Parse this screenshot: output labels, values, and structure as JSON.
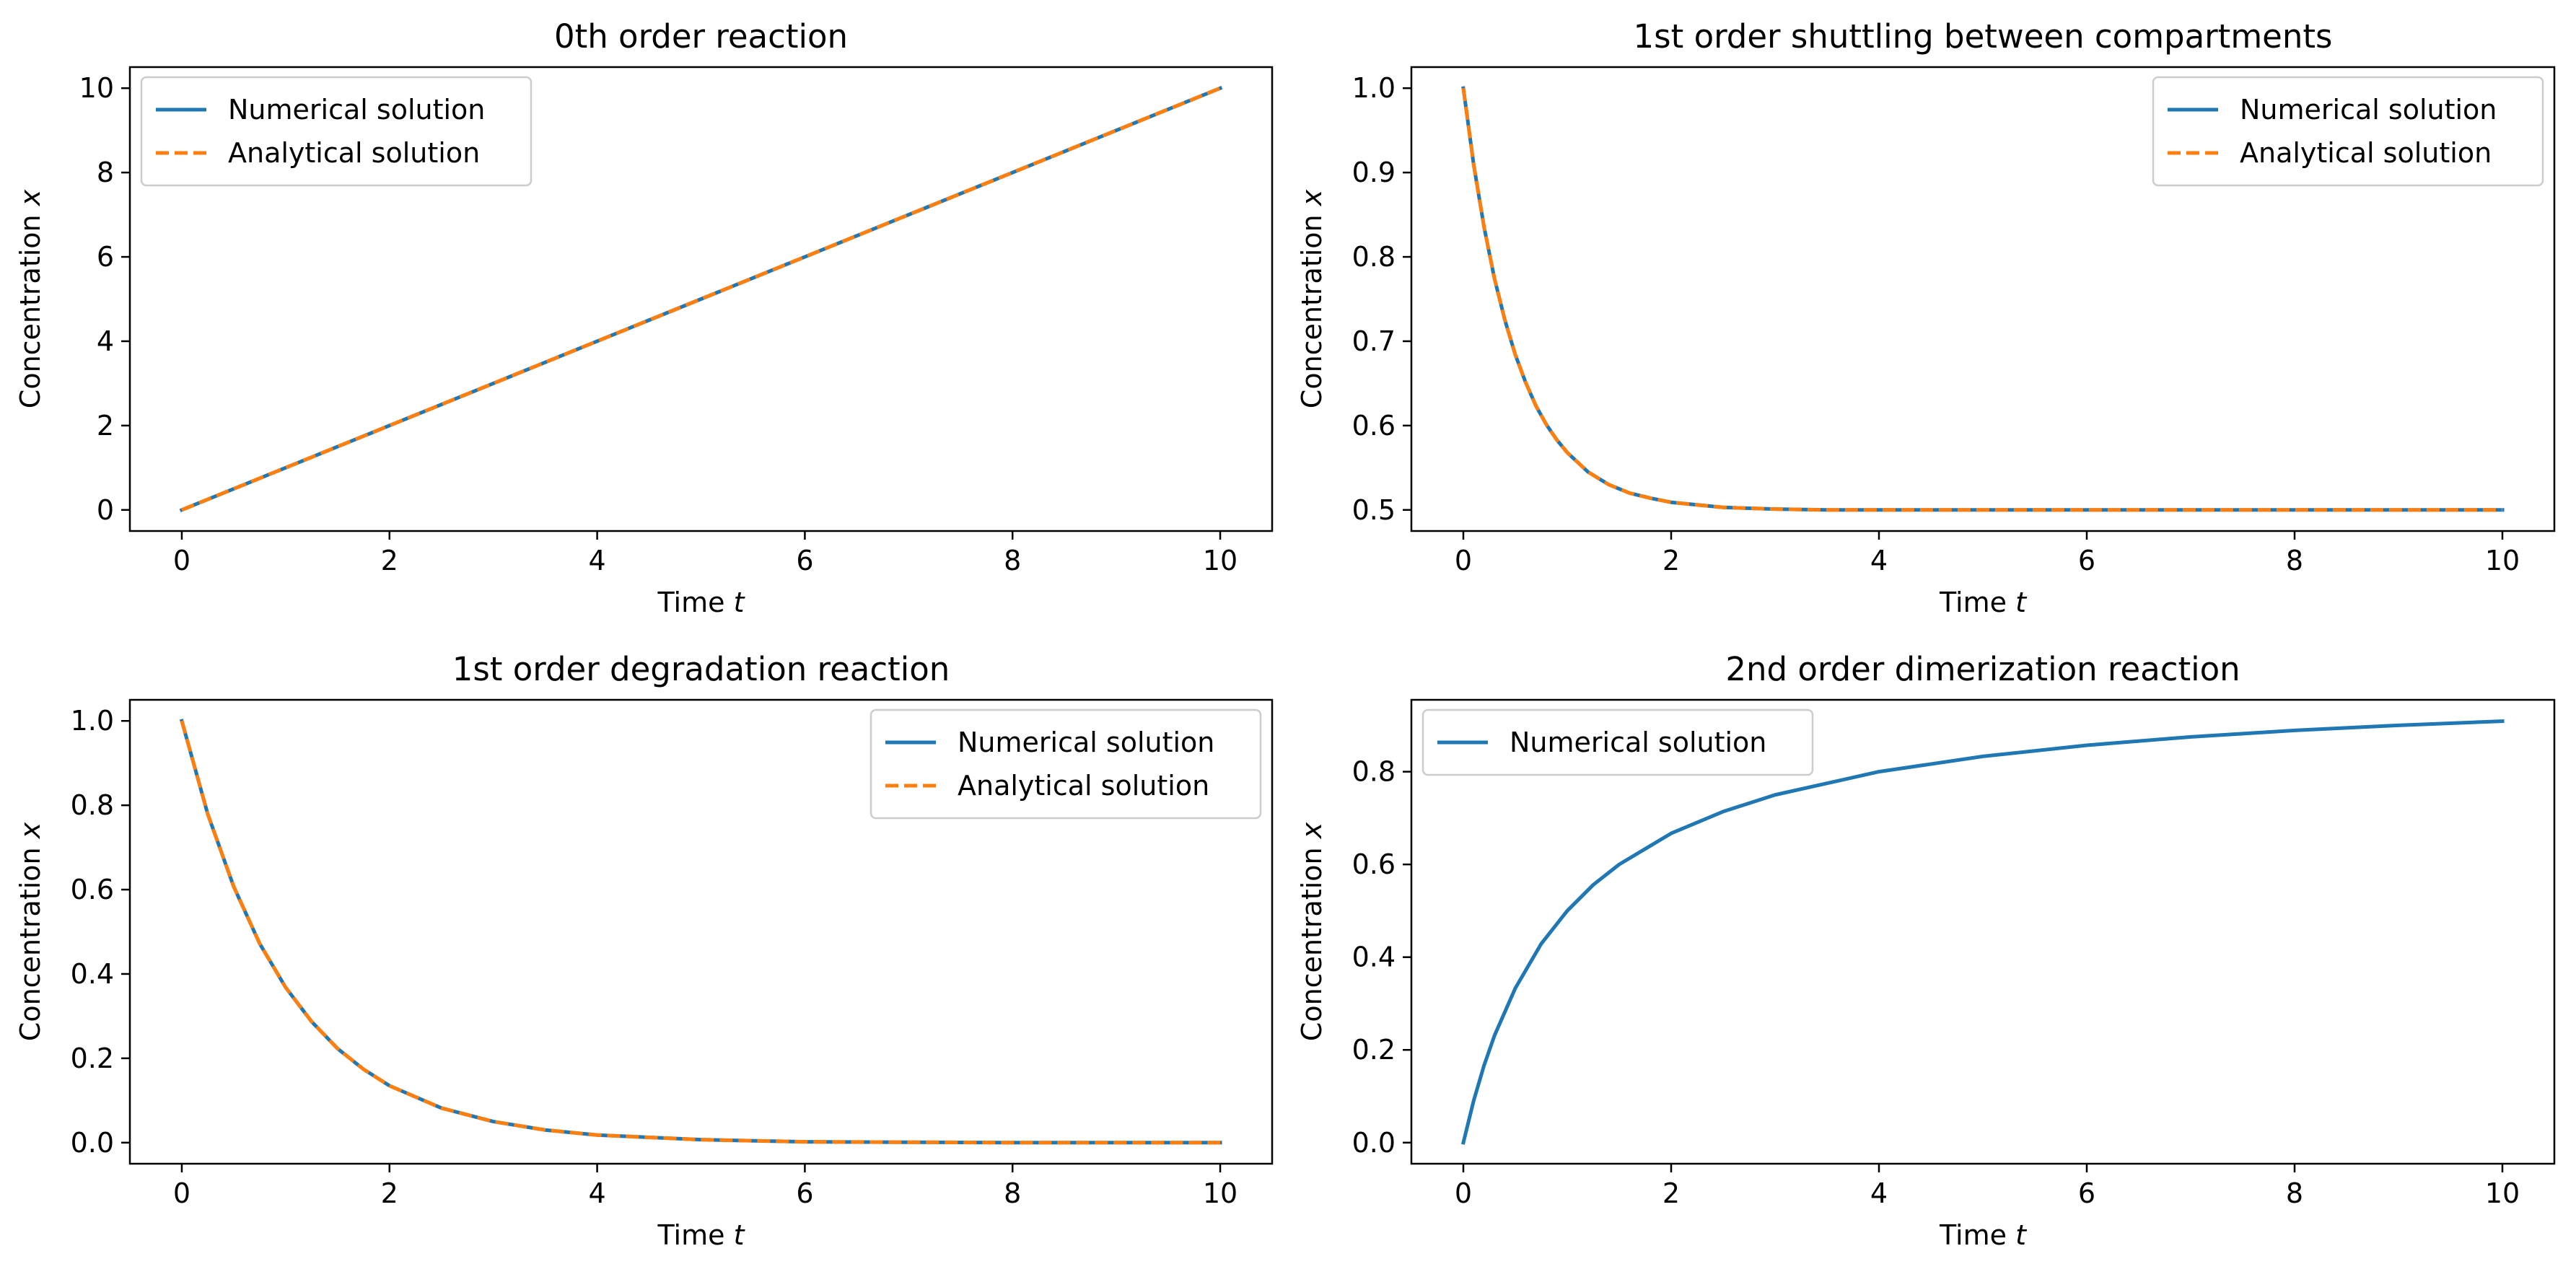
{
  "figure": {
    "colors": {
      "numerical": "#1f77b4",
      "analytical": "#ff7f0e"
    }
  },
  "chart_data": [
    {
      "type": "line",
      "title": "0th order reaction",
      "xlabel": "Time",
      "xlabel_var": "t",
      "ylabel": "Concentration",
      "ylabel_var": "x",
      "xlim": [
        -0.5,
        10.5
      ],
      "ylim": [
        -0.5,
        10.5
      ],
      "xticks": [
        0,
        2,
        4,
        6,
        8,
        10
      ],
      "yticks": [
        0,
        2,
        4,
        6,
        8,
        10
      ],
      "ytick_labels": [
        "0",
        "2",
        "4",
        "6",
        "8",
        "10"
      ],
      "legend": "upper-left",
      "grid": false,
      "x": [
        0,
        1,
        2,
        3,
        4,
        5,
        6,
        7,
        8,
        9,
        10
      ],
      "series": [
        {
          "name": "Numerical solution",
          "style": "solid",
          "values": [
            0,
            1,
            2,
            3,
            4,
            5,
            6,
            7,
            8,
            9,
            10
          ]
        },
        {
          "name": "Analytical solution",
          "style": "dashed",
          "values": [
            0,
            1,
            2,
            3,
            4,
            5,
            6,
            7,
            8,
            9,
            10
          ]
        }
      ]
    },
    {
      "type": "line",
      "title": "1st order shuttling between compartments",
      "xlabel": "Time",
      "xlabel_var": "t",
      "ylabel": "Concentration",
      "ylabel_var": "x",
      "xlim": [
        -0.5,
        10.5
      ],
      "ylim": [
        0.475,
        1.025
      ],
      "xticks": [
        0,
        2,
        4,
        6,
        8,
        10
      ],
      "yticks": [
        0.5,
        0.6,
        0.7,
        0.8,
        0.9,
        1.0
      ],
      "ytick_labels": [
        "0.5",
        "0.6",
        "0.7",
        "0.8",
        "0.9",
        "1.0"
      ],
      "legend": "upper-right",
      "grid": false,
      "x": [
        0,
        0.1,
        0.2,
        0.3,
        0.4,
        0.5,
        0.6,
        0.7,
        0.8,
        0.9,
        1.0,
        1.2,
        1.4,
        1.6,
        1.8,
        2.0,
        2.5,
        3.0,
        3.5,
        4.0,
        5.0,
        6.0,
        7.0,
        8.0,
        9.0,
        10.0
      ],
      "series": [
        {
          "name": "Numerical solution",
          "style": "solid",
          "values": [
            1.0,
            0.909,
            0.835,
            0.774,
            0.725,
            0.684,
            0.651,
            0.623,
            0.601,
            0.583,
            0.568,
            0.545,
            0.53,
            0.52,
            0.514,
            0.509,
            0.503,
            0.501,
            0.5,
            0.5,
            0.5,
            0.5,
            0.5,
            0.5,
            0.5,
            0.5
          ]
        },
        {
          "name": "Analytical solution",
          "style": "dashed",
          "values": [
            1.0,
            0.909,
            0.835,
            0.774,
            0.725,
            0.684,
            0.651,
            0.623,
            0.601,
            0.583,
            0.568,
            0.545,
            0.53,
            0.52,
            0.514,
            0.509,
            0.503,
            0.501,
            0.5,
            0.5,
            0.5,
            0.5,
            0.5,
            0.5,
            0.5,
            0.5
          ]
        }
      ]
    },
    {
      "type": "line",
      "title": "1st order degradation reaction",
      "xlabel": "Time",
      "xlabel_var": "t",
      "ylabel": "Concentration",
      "ylabel_var": "x",
      "xlim": [
        -0.5,
        10.5
      ],
      "ylim": [
        -0.05,
        1.05
      ],
      "xticks": [
        0,
        2,
        4,
        6,
        8,
        10
      ],
      "yticks": [
        0.0,
        0.2,
        0.4,
        0.6,
        0.8,
        1.0
      ],
      "ytick_labels": [
        "0.0",
        "0.2",
        "0.4",
        "0.6",
        "0.8",
        "1.0"
      ],
      "legend": "upper-right",
      "grid": false,
      "x": [
        0,
        0.25,
        0.5,
        0.75,
        1.0,
        1.25,
        1.5,
        1.75,
        2.0,
        2.5,
        3.0,
        3.5,
        4.0,
        5.0,
        6.0,
        7.0,
        8.0,
        9.0,
        10.0
      ],
      "series": [
        {
          "name": "Numerical solution",
          "style": "solid",
          "values": [
            1.0,
            0.779,
            0.607,
            0.472,
            0.368,
            0.287,
            0.223,
            0.174,
            0.135,
            0.082,
            0.05,
            0.03,
            0.018,
            0.007,
            0.002,
            0.001,
            0.0,
            0.0,
            0.0
          ]
        },
        {
          "name": "Analytical solution",
          "style": "dashed",
          "values": [
            1.0,
            0.779,
            0.607,
            0.472,
            0.368,
            0.287,
            0.223,
            0.174,
            0.135,
            0.082,
            0.05,
            0.03,
            0.018,
            0.007,
            0.002,
            0.001,
            0.0,
            0.0,
            0.0
          ]
        }
      ]
    },
    {
      "type": "line",
      "title": "2nd order dimerization reaction",
      "xlabel": "Time",
      "xlabel_var": "t",
      "ylabel": "Concentration",
      "ylabel_var": "x",
      "xlim": [
        -0.5,
        10.5
      ],
      "ylim": [
        -0.0455,
        0.955
      ],
      "xticks": [
        0,
        2,
        4,
        6,
        8,
        10
      ],
      "yticks": [
        0.0,
        0.2,
        0.4,
        0.6,
        0.8
      ],
      "ytick_labels": [
        "0.0",
        "0.2",
        "0.4",
        "0.6",
        "0.8"
      ],
      "legend": "upper-left",
      "grid": false,
      "x": [
        0,
        0.1,
        0.2,
        0.3,
        0.5,
        0.75,
        1.0,
        1.25,
        1.5,
        2.0,
        2.5,
        3.0,
        4.0,
        5.0,
        6.0,
        7.0,
        8.0,
        9.0,
        10.0
      ],
      "series": [
        {
          "name": "Numerical solution",
          "style": "solid",
          "values": [
            0.0,
            0.091,
            0.167,
            0.231,
            0.333,
            0.429,
            0.5,
            0.556,
            0.6,
            0.667,
            0.714,
            0.75,
            0.8,
            0.833,
            0.857,
            0.875,
            0.889,
            0.9,
            0.909
          ]
        }
      ]
    }
  ]
}
